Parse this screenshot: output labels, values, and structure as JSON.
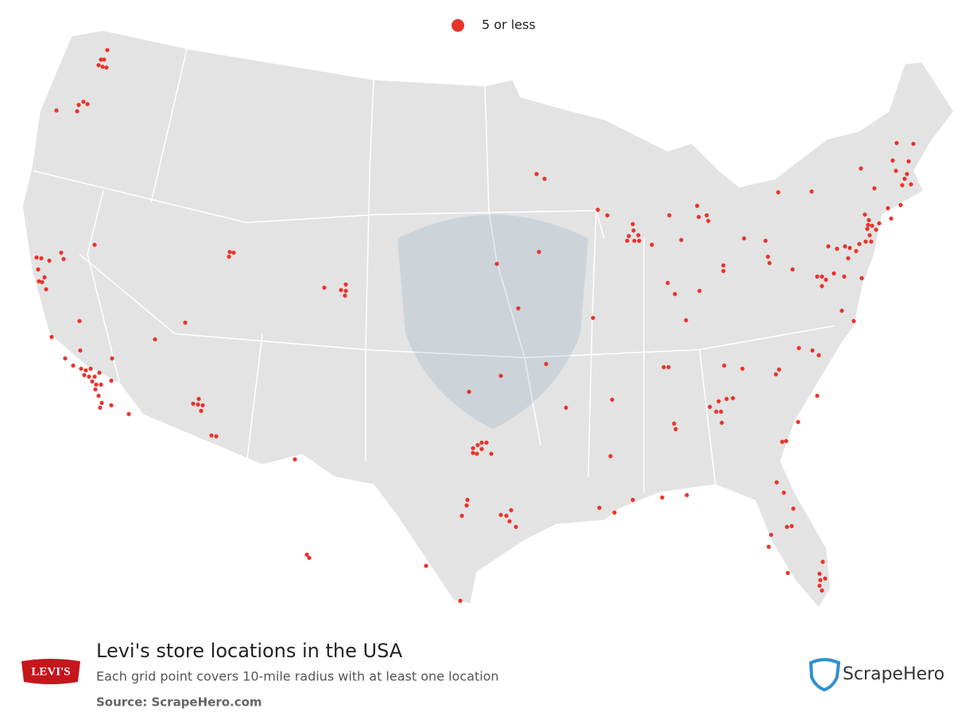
{
  "legend": {
    "label": "5 or less"
  },
  "title": "Levi's store locations in the USA",
  "subtitle": "Each grid point covers 10-mile radius with at least one location",
  "source": "Source: ScrapeHero.com",
  "brand_logo": "LEVI'S",
  "watermark_logo": "ScrapeHero"
}
